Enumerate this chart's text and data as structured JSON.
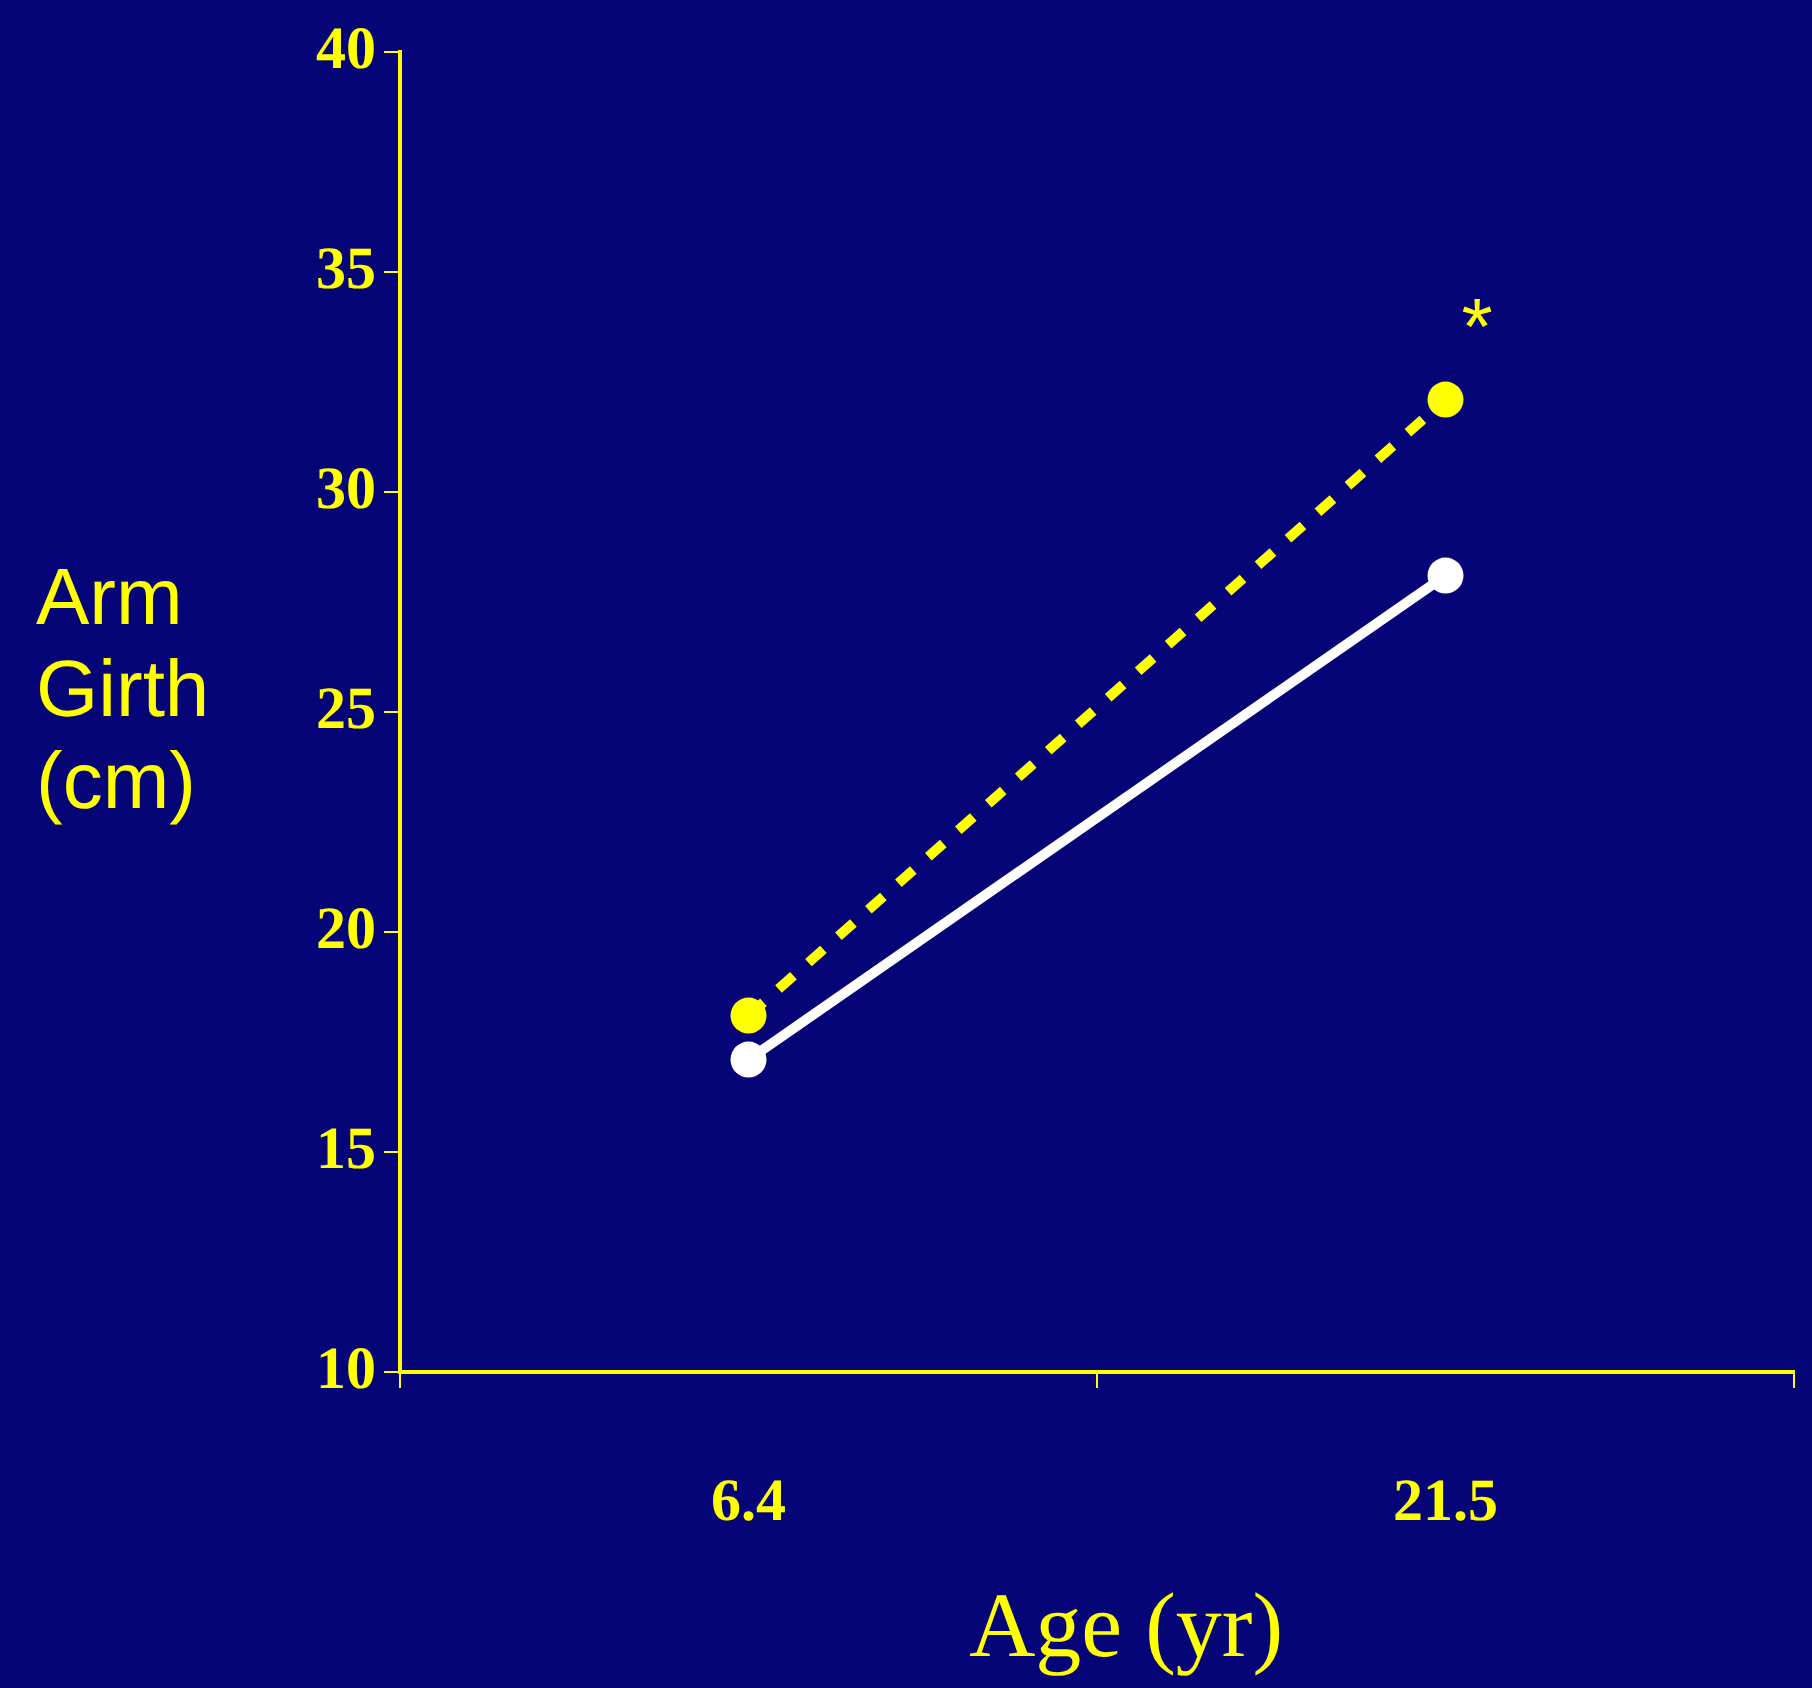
{
  "chart_data": {
    "type": "line",
    "xlabel": "Age (yr)",
    "ylabel": "Arm Girth (cm)",
    "categories": [
      "6.4",
      "21.5"
    ],
    "series": [
      {
        "color": "#ffff00",
        "values": [
          18.1,
          32.1
        ],
        "line_style": "dashed"
      },
      {
        "color": "#ffffff",
        "values": [
          17.1,
          28.1
        ],
        "line_style": "solid"
      }
    ],
    "ylim": [
      10,
      40
    ],
    "yticks": [
      10,
      15,
      20,
      25,
      30,
      35,
      40
    ],
    "marker": "circle",
    "annotations": [
      "*"
    ]
  }
}
